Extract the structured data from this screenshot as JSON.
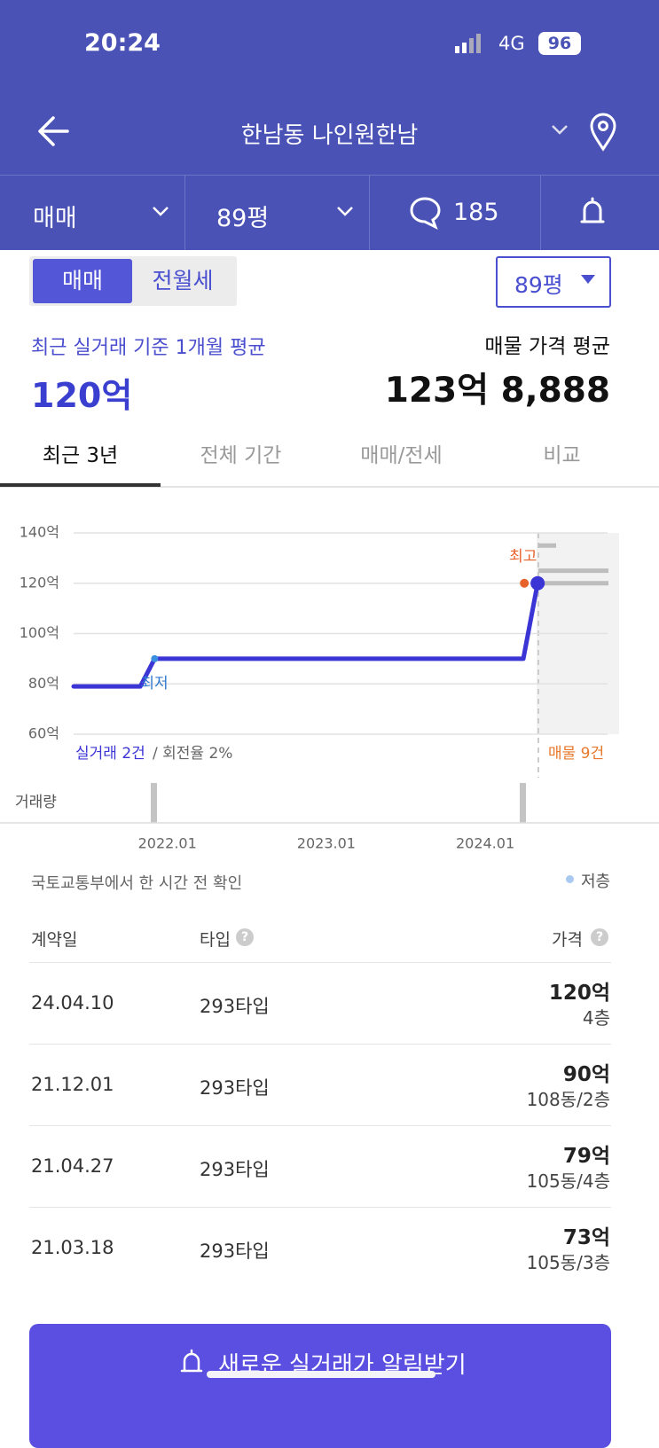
{
  "status_bar": {
    "time": "20:24",
    "network": "4G",
    "battery": "96"
  },
  "header": {
    "title": "한남동 나인원한남"
  },
  "filters": {
    "deal_type": "매매",
    "size": "89평",
    "comments": "185"
  },
  "toggle": {
    "options": [
      "매매",
      "전월세"
    ],
    "size_select": "89평"
  },
  "summary": {
    "recent_label": "최근 실거래 기준 1개월 평균",
    "recent_value": "120억",
    "listing_label": "매물 가격 평균",
    "listing_value": "123억 8,888"
  },
  "tabs": [
    "최근 3년",
    "전체 기간",
    "매매/전세",
    "비교"
  ],
  "chart": {
    "type": "line",
    "color": "#3b35d6",
    "ylim": [
      60,
      140
    ],
    "yticks": [
      {
        "value": 60,
        "label": "60억"
      },
      {
        "value": 80,
        "label": "80억"
      },
      {
        "value": 100,
        "label": "100억"
      },
      {
        "value": 120,
        "label": "120억"
      },
      {
        "value": 140,
        "label": "140억"
      }
    ],
    "xlim": [
      2021.41,
      2024.77
    ],
    "xticks": [
      {
        "value": 2022,
        "label": "2022.01"
      },
      {
        "value": 2023,
        "label": "2023.01"
      },
      {
        "value": 2024,
        "label": "2024.01"
      }
    ],
    "x": [
      2021.41,
      2021.83,
      2021.92,
      2024.24,
      2024.33
    ],
    "values": [
      79,
      79,
      90,
      90,
      120
    ],
    "listings": {
      "color": "#bdbdbd",
      "values": [
        135,
        125,
        120
      ]
    },
    "annotations": {
      "high": "최고",
      "low": "최저"
    },
    "trades_label": "실거래 2건",
    "turnover_label": "/ 회전율 2%",
    "listings_label": "매물 9건",
    "volume_label": "거래량"
  },
  "source": {
    "text": "국토교통부에서 한 시간 전 확인",
    "legend": "저층"
  },
  "table": {
    "headers": [
      "계약일",
      "타입",
      "가격"
    ],
    "rows": [
      [
        "24.04.10",
        "293타입",
        "120억",
        "4층"
      ],
      [
        "21.12.01",
        "293타입",
        "90억",
        "108동/2층"
      ],
      [
        "21.04.27",
        "293타입",
        "79억",
        "105동/4층"
      ],
      [
        "21.03.18",
        "293타입",
        "73억",
        "105동/3층"
      ]
    ]
  },
  "button": {
    "label": "새로운 실거래가 알림받기"
  }
}
